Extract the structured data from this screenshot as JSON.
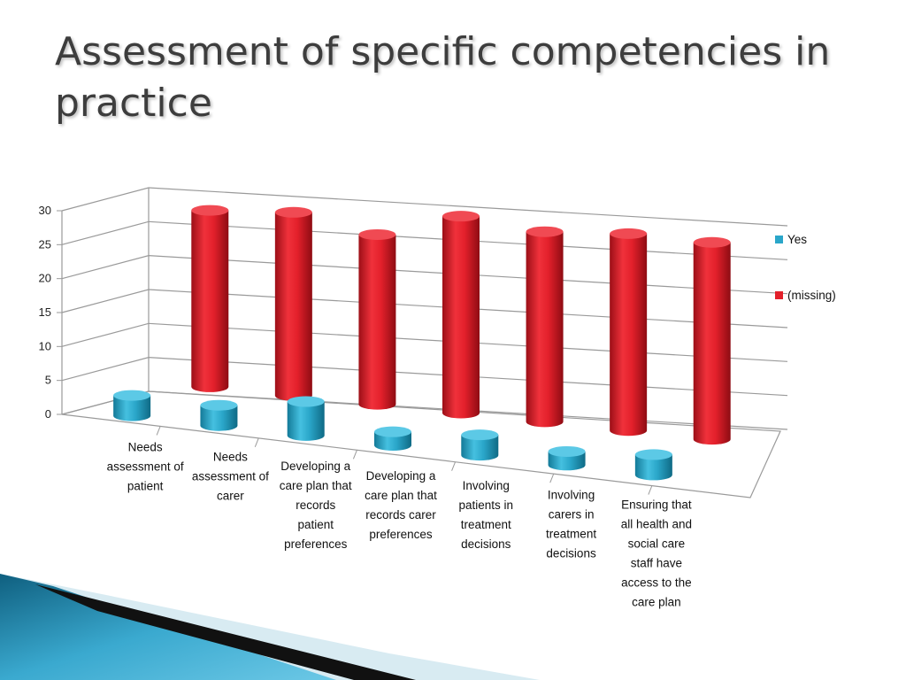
{
  "title": "Assessment of specific competencies in practice",
  "colors": {
    "yes": "#2aa6c9",
    "missing": "#e3202b",
    "title": "#3d3d3d"
  },
  "chart_data": {
    "type": "bar",
    "categories": [
      "Needs assessment of patient",
      "Needs assessment of carer",
      "Developing a care plan that records patient preferences",
      "Developing a care plan that records carer preferences",
      "Involving patients in treatment decisions",
      "Involving carers in treatment decisions",
      "Ensuring that all health and social care staff have access to the care plan"
    ],
    "category_lines": [
      [
        "Needs",
        "assessment of",
        "patient"
      ],
      [
        "Needs",
        "assessment of",
        "carer"
      ],
      [
        "Developing a",
        "care plan that",
        "records",
        "patient",
        "preferences"
      ],
      [
        "Developing a",
        "care plan that",
        "records carer",
        "preferences"
      ],
      [
        "Involving",
        "patients in",
        "treatment",
        "decisions"
      ],
      [
        "Involving",
        "carers in",
        "treatment",
        "decisions"
      ],
      [
        "Ensuring that",
        "all health and",
        "social care",
        "staff have",
        "access to the",
        "care plan"
      ]
    ],
    "series": [
      {
        "name": "Yes",
        "values": [
          3,
          3,
          5,
          2,
          3,
          2,
          3
        ]
      },
      {
        "name": "(missing)",
        "values": [
          26,
          27,
          25,
          29,
          28,
          29,
          29
        ]
      }
    ],
    "ylim": [
      0,
      30
    ],
    "yticks": [
      0,
      5,
      10,
      15,
      20,
      25,
      30
    ],
    "legend": [
      "Yes",
      "(missing)"
    ],
    "legend_position": "right",
    "grid": true,
    "style": "3d-cylinder"
  }
}
